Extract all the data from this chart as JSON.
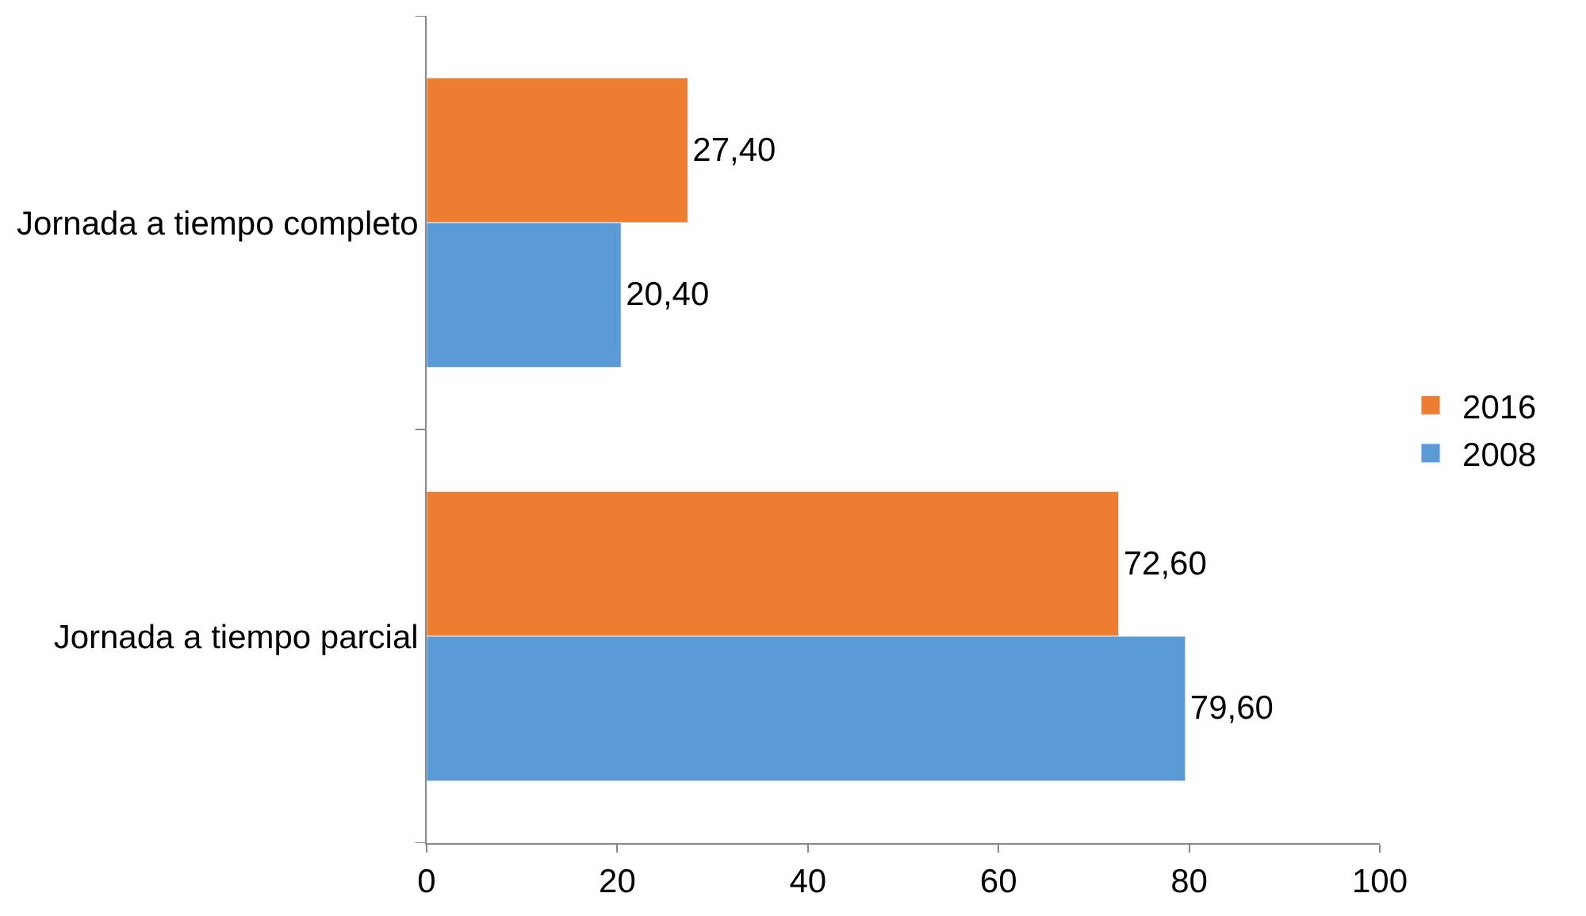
{
  "chart_data": {
    "type": "bar",
    "orientation": "horizontal",
    "categories": [
      "Jornada a tiempo completo",
      "Jornada a tiempo parcial"
    ],
    "series": [
      {
        "name": "2016",
        "color": "#ed7d31",
        "values": [
          27.4,
          72.6
        ],
        "value_labels": [
          "27,40",
          "72,60"
        ]
      },
      {
        "name": "2008",
        "color": "#5b9bd5",
        "values": [
          20.4,
          79.6
        ],
        "value_labels": [
          "20,40",
          "79,60"
        ]
      }
    ],
    "xlim": [
      0,
      100
    ],
    "xticks": [
      0,
      20,
      40,
      60,
      80,
      100
    ],
    "legend": "right"
  }
}
